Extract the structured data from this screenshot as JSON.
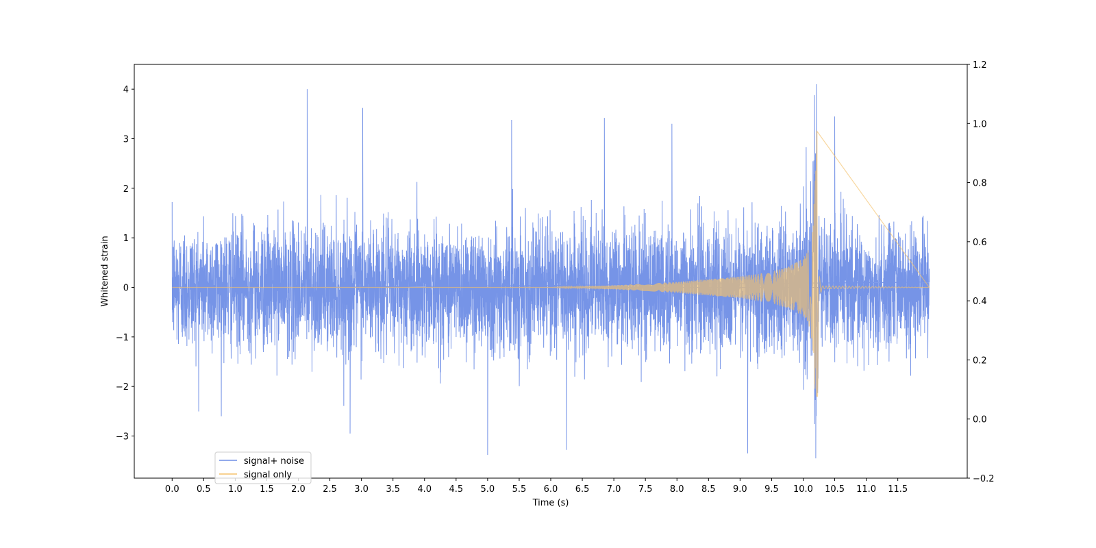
{
  "chart_data": {
    "type": "line",
    "title": "",
    "xlabel": "Time (s)",
    "ylabel": "Whitened strain",
    "xlim": [
      -0.6,
      12.6
    ],
    "ylim": [
      -3.85,
      4.5
    ],
    "y2lim": [
      -0.2,
      1.2
    ],
    "x_ticks": [
      0.0,
      0.5,
      1.0,
      1.5,
      2.0,
      2.5,
      3.0,
      3.5,
      4.0,
      4.5,
      5.0,
      5.5,
      6.0,
      6.5,
      7.0,
      7.5,
      8.0,
      8.5,
      9.0,
      9.5,
      10.0,
      10.5,
      11.0,
      11.5
    ],
    "x_tick_labels": [
      "0.0",
      "0.5",
      "1.0",
      "1.5",
      "2.0",
      "2.5",
      "3.0",
      "3.5",
      "4.0",
      "4.5",
      "5.0",
      "5.5",
      "6.0",
      "6.5",
      "7.0",
      "7.5",
      "8.0",
      "8.5",
      "9.0",
      "9.5",
      "10.0",
      "10.5",
      "11.0",
      "11.5"
    ],
    "y_ticks": [
      -3,
      -2,
      -1,
      0,
      1,
      2,
      3,
      4
    ],
    "y_tick_labels": [
      "−3",
      "−2",
      "−1",
      "0",
      "1",
      "2",
      "3",
      "4"
    ],
    "y2_ticks": [
      -0.2,
      0.0,
      0.2,
      0.4,
      0.6,
      0.8,
      1.0,
      1.2
    ],
    "y2_tick_labels": [
      "−0.2",
      "0.0",
      "0.2",
      "0.4",
      "0.6",
      "0.8",
      "1.0",
      "1.2"
    ],
    "grid": false,
    "legend_position": "lower-left",
    "series": [
      {
        "name": "signal+ noise",
        "color": "#6f8ee6",
        "description": "whitened gaussian noise plus inspiral chirp, sampled from 0 to 12 s",
        "t_start": 0.0,
        "t_end": 12.0,
        "noise_envelope": [
          -1.6,
          1.6
        ],
        "notable_peaks": [
          {
            "x": 2.14,
            "y": 4.0
          },
          {
            "x": 3.02,
            "y": 3.62
          },
          {
            "x": 5.0,
            "y": -3.38
          },
          {
            "x": 5.38,
            "y": 3.38
          },
          {
            "x": 6.25,
            "y": -3.28
          },
          {
            "x": 6.85,
            "y": 3.42
          },
          {
            "x": 7.92,
            "y": 3.3
          },
          {
            "x": 9.12,
            "y": -3.35
          },
          {
            "x": 10.18,
            "y": 3.88
          },
          {
            "x": 10.21,
            "y": 4.1
          },
          {
            "x": 10.2,
            "y": -3.45
          },
          {
            "x": 10.5,
            "y": 3.45
          },
          {
            "x": 2.82,
            "y": -2.95
          }
        ]
      },
      {
        "name": "signal only",
        "color": "#f5c26b",
        "description": "chirp waveform growing from ~6 s, merger near 10.22 s, ringdown after",
        "merger_time": 10.22,
        "merger_peak": [
          3.15,
          -2.2
        ],
        "envelope": [
          {
            "x": 0.0,
            "y": 0.0
          },
          {
            "x": 6.0,
            "y": 0.0
          },
          {
            "x": 7.0,
            "y": 0.04
          },
          {
            "x": 8.0,
            "y": 0.11
          },
          {
            "x": 9.0,
            "y": 0.22
          },
          {
            "x": 9.5,
            "y": 0.32
          },
          {
            "x": 9.8,
            "y": 0.44
          },
          {
            "x": 10.0,
            "y": 0.58
          },
          {
            "x": 10.1,
            "y": 0.8
          },
          {
            "x": 10.15,
            "y": 1.15
          },
          {
            "x": 10.2,
            "y": 2.4
          },
          {
            "x": 10.22,
            "y": 3.15
          },
          {
            "x": 10.25,
            "y": 0.25
          },
          {
            "x": 10.3,
            "y": 0.03
          },
          {
            "x": 12.0,
            "y": 0.0
          }
        ]
      }
    ]
  }
}
